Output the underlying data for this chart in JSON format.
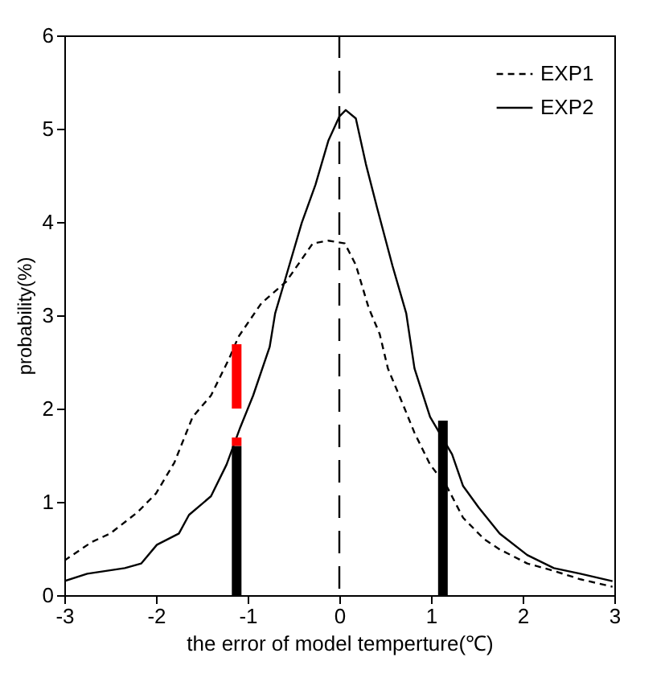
{
  "chart_data": {
    "type": "line",
    "xlabel": "the error of model temperture(℃)",
    "ylabel": "probability(%)",
    "xlim": [
      -3,
      3
    ],
    "ylim": [
      0,
      6
    ],
    "xticks": [
      -3,
      -2,
      -1,
      0,
      1,
      2,
      3
    ],
    "yticks": [
      0,
      1,
      2,
      3,
      4,
      5,
      6
    ],
    "grid": false,
    "legend": "top right",
    "stacked": true,
    "ref_lines": [
      {
        "axis": "x",
        "value": 0,
        "color": "#000000",
        "line_style": "dashed"
      }
    ],
    "series": [
      {
        "name": "EXP1",
        "color": "#000000",
        "line_style": "dashed",
        "x": [
          -3,
          -2.7,
          -2.5,
          -2.2,
          -2,
          -1.8,
          -1.6,
          -1.4,
          -1.2,
          -1.1,
          -0.85,
          -0.58,
          -0.29,
          -0.12,
          0.06,
          0.18,
          0.32,
          0.44,
          0.53,
          0.7,
          0.82,
          0.99,
          1.17,
          1.35,
          1.58,
          1.75,
          2.05,
          2.34,
          2.63,
          2.98
        ],
        "values": [
          0.37,
          0.57,
          0.66,
          0.89,
          1.09,
          1.42,
          1.91,
          2.14,
          2.54,
          2.77,
          3.13,
          3.36,
          3.77,
          3.8,
          3.77,
          3.54,
          3.08,
          2.8,
          2.43,
          2.03,
          1.74,
          1.4,
          1.17,
          0.83,
          0.6,
          0.49,
          0.34,
          0.26,
          0.17,
          0.09
        ]
      },
      {
        "name": "EXP2",
        "color": "#000000",
        "line_style": "solid",
        "x": [
          -3,
          -2.75,
          -2.34,
          -2.16,
          -1.99,
          -1.75,
          -1.64,
          -1.4,
          -1.23,
          -1.08,
          -0.94,
          -0.76,
          -0.7,
          -0.58,
          -0.41,
          -0.26,
          -0.12,
          0,
          0.07,
          0.18,
          0.29,
          0.41,
          0.58,
          0.73,
          0.82,
          0.99,
          1.23,
          1.35,
          1.52,
          1.75,
          2.05,
          2.34,
          2.63,
          2.98
        ],
        "values": [
          0.15,
          0.23,
          0.29,
          0.34,
          0.54,
          0.66,
          0.86,
          1.06,
          1.4,
          1.8,
          2.14,
          2.66,
          3.02,
          3.42,
          3.99,
          4.4,
          4.87,
          5.13,
          5.2,
          5.11,
          4.62,
          4.16,
          3.53,
          3.02,
          2.43,
          1.91,
          1.51,
          1.17,
          0.94,
          0.66,
          0.43,
          0.29,
          0.23,
          0.15
        ]
      },
      {
        "type": "bar",
        "color": "#000000",
        "x": [
          -1.12,
          1.13
        ],
        "values": [
          1.6,
          1.87
        ]
      },
      {
        "type": "bar",
        "color": "#ff0000",
        "x": [
          -1.12
        ],
        "values": [
          0.09
        ]
      },
      {
        "type": "line",
        "color": "#ff0000",
        "x": [
          -1.12,
          -1.12
        ],
        "values": [
          2.0,
          2.69
        ]
      }
    ]
  }
}
